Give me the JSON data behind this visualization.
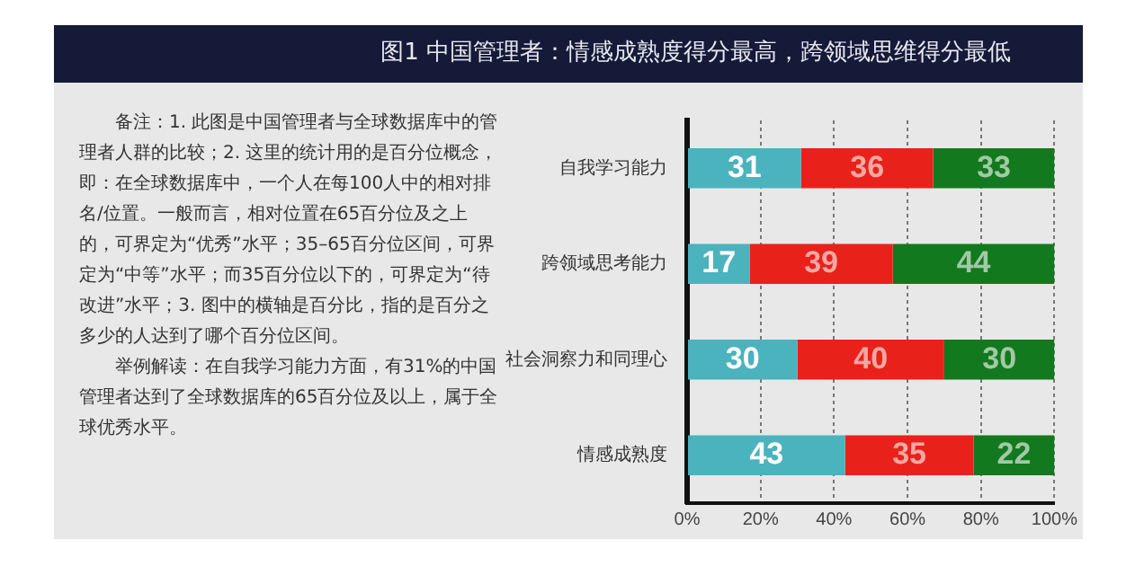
{
  "chart_data": {
    "type": "bar",
    "orientation": "horizontal",
    "stacked": true,
    "title": "图1 中国管理者：情感成熟度得分最高，跨领域思维得分最低",
    "categories": [
      "自我学习能力",
      "跨领域思考能力",
      "社会洞察力和同理心",
      "情感成熟度"
    ],
    "series": [
      {
        "color": "#4bb3bd",
        "values": [
          31,
          17,
          30,
          43
        ]
      },
      {
        "color": "#e8221a",
        "values": [
          36,
          39,
          40,
          35
        ]
      },
      {
        "color": "#13791e",
        "values": [
          33,
          44,
          30,
          22
        ]
      }
    ],
    "xlim": [
      0,
      100
    ],
    "xticks": [
      {
        "value": 0,
        "label": "0%"
      },
      {
        "value": 20,
        "label": "20%"
      },
      {
        "value": 40,
        "label": "40%"
      },
      {
        "value": 60,
        "label": "60%"
      },
      {
        "value": 80,
        "label": "80%"
      },
      {
        "value": 100,
        "label": "100%"
      }
    ],
    "grid": "x",
    "data_labels": true,
    "legend": false,
    "annotations": [
      "备注：1. 此图是中国管理者与全球数据库中的管理者人群的比较；2. 这里的统计用的是百分位概念，即：在全球数据库中，一个人在每100人中的相对排名/位置。一般而言，相对位置在65百分位及之上的，可界定为“优秀”水平；35–65百分位区间，可界定为“中等”水平；而35百分位以下的，可界定为“待改进”水平；3. 图中的横轴是百分比，指的是百分之多少的人达到了哪个百分位区间。",
      "举例解读：在自我学习能力方面，有31%的中国管理者达到了全球数据库的65百分位及以上，属于全球优秀水平。"
    ]
  }
}
